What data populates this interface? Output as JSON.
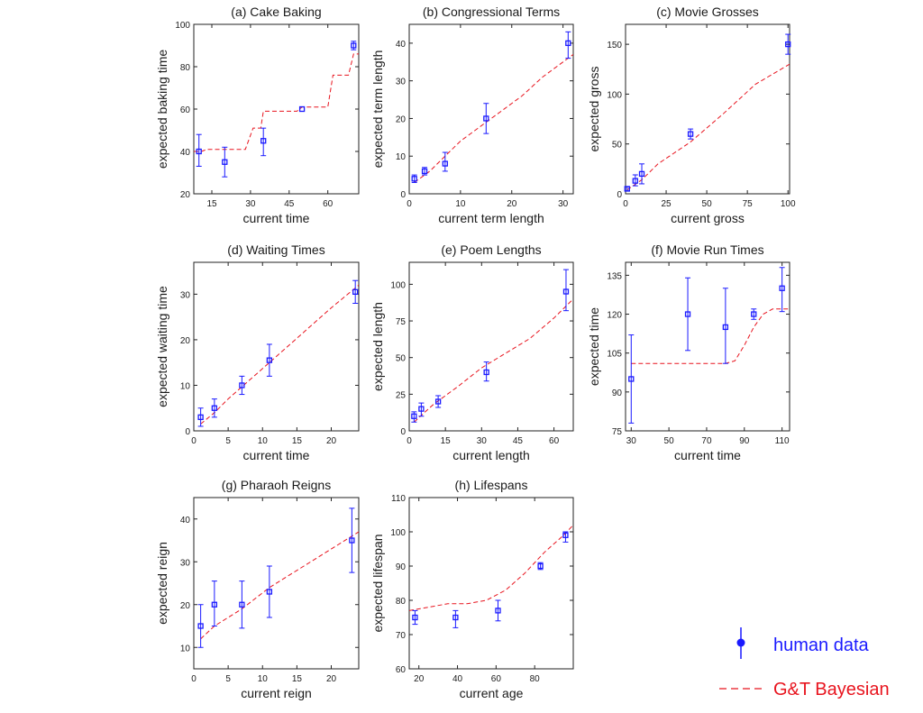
{
  "legend": {
    "human_label": "human data",
    "human_color": "#1a1aff",
    "model_label": "G&T Bayesian",
    "model_color": "#e8141e"
  },
  "chart_data": [
    {
      "type": "line",
      "title": "(a) Cake Baking",
      "xlabel": "current time",
      "ylabel": "expected baking time",
      "xlim": [
        8,
        72
      ],
      "ylim": [
        20,
        100
      ],
      "xticks": [
        15,
        30,
        45,
        60
      ],
      "yticks": [
        20,
        40,
        60,
        80,
        100
      ],
      "human": [
        {
          "x": 10,
          "y": 40,
          "lo": 33,
          "hi": 48
        },
        {
          "x": 20,
          "y": 35,
          "lo": 28,
          "hi": 42
        },
        {
          "x": 35,
          "y": 45,
          "lo": 38,
          "hi": 51
        },
        {
          "x": 50,
          "y": 60,
          "lo": 60,
          "hi": 60
        },
        {
          "x": 70,
          "y": 90,
          "lo": 88,
          "hi": 92
        }
      ],
      "model": [
        [
          8,
          40
        ],
        [
          11,
          40
        ],
        [
          13,
          41
        ],
        [
          28,
          41
        ],
        [
          31,
          51
        ],
        [
          34,
          51
        ],
        [
          35,
          59
        ],
        [
          48,
          59
        ],
        [
          50,
          61
        ],
        [
          60,
          61
        ],
        [
          62,
          76
        ],
        [
          68,
          76
        ],
        [
          70,
          86
        ],
        [
          72,
          86
        ]
      ]
    },
    {
      "type": "line",
      "title": "(b) Congressional Terms",
      "xlabel": "current term length",
      "ylabel": "expected term length",
      "xlim": [
        0,
        32
      ],
      "ylim": [
        0,
        45
      ],
      "xticks": [
        0,
        10,
        20,
        30
      ],
      "yticks": [
        0,
        10,
        20,
        30,
        40
      ],
      "human": [
        {
          "x": 1,
          "y": 4,
          "lo": 3,
          "hi": 5
        },
        {
          "x": 3,
          "y": 6,
          "lo": 5,
          "hi": 7
        },
        {
          "x": 7,
          "y": 8,
          "lo": 6,
          "hi": 11
        },
        {
          "x": 15,
          "y": 20,
          "lo": 16,
          "hi": 24
        },
        {
          "x": 31,
          "y": 40,
          "lo": 36,
          "hi": 43
        }
      ],
      "model": [
        [
          1,
          3
        ],
        [
          4,
          6
        ],
        [
          7,
          10
        ],
        [
          10,
          14
        ],
        [
          14,
          18
        ],
        [
          18,
          22
        ],
        [
          22,
          26
        ],
        [
          26,
          31
        ],
        [
          30,
          35
        ],
        [
          32,
          37
        ]
      ]
    },
    {
      "type": "line",
      "title": "(c) Movie Grosses",
      "xlabel": "current gross",
      "ylabel": "expected gross",
      "xlim": [
        0,
        101
      ],
      "ylim": [
        0,
        170
      ],
      "xticks": [
        0,
        25,
        50,
        75,
        100
      ],
      "yticks": [
        0,
        50,
        100,
        150
      ],
      "human": [
        {
          "x": 1,
          "y": 5,
          "lo": 3,
          "hi": 7
        },
        {
          "x": 6,
          "y": 13,
          "lo": 8,
          "hi": 19
        },
        {
          "x": 10,
          "y": 20,
          "lo": 10,
          "hi": 30
        },
        {
          "x": 40,
          "y": 60,
          "lo": 55,
          "hi": 65
        },
        {
          "x": 100,
          "y": 150,
          "lo": 140,
          "hi": 160
        }
      ],
      "model": [
        [
          1,
          4
        ],
        [
          10,
          14
        ],
        [
          20,
          30
        ],
        [
          40,
          52
        ],
        [
          60,
          80
        ],
        [
          80,
          110
        ],
        [
          101,
          130
        ]
      ]
    },
    {
      "type": "line",
      "title": "(d) Waiting Times",
      "xlabel": "current time",
      "ylabel": "expected waiting time",
      "xlim": [
        0,
        24
      ],
      "ylim": [
        0,
        37
      ],
      "xticks": [
        0,
        5,
        10,
        15,
        20
      ],
      "yticks": [
        0,
        10,
        20,
        30
      ],
      "human": [
        {
          "x": 1,
          "y": 3,
          "lo": 1,
          "hi": 5
        },
        {
          "x": 3,
          "y": 5,
          "lo": 3,
          "hi": 7
        },
        {
          "x": 7,
          "y": 10,
          "lo": 8,
          "hi": 12
        },
        {
          "x": 11,
          "y": 15.5,
          "lo": 12,
          "hi": 19
        },
        {
          "x": 23.5,
          "y": 30.5,
          "lo": 28,
          "hi": 33
        }
      ],
      "model": [
        [
          1,
          1.5
        ],
        [
          3,
          4
        ],
        [
          5,
          7
        ],
        [
          8,
          11
        ],
        [
          11,
          15
        ],
        [
          14,
          19
        ],
        [
          17,
          23
        ],
        [
          20,
          27
        ],
        [
          24,
          32
        ]
      ]
    },
    {
      "type": "line",
      "title": "(e) Poem Lengths",
      "xlabel": "current length",
      "ylabel": "expected length",
      "xlim": [
        0,
        68
      ],
      "ylim": [
        0,
        115
      ],
      "xticks": [
        0,
        15,
        30,
        45,
        60
      ],
      "yticks": [
        0,
        25,
        50,
        75,
        100
      ],
      "human": [
        {
          "x": 2,
          "y": 10,
          "lo": 6,
          "hi": 13
        },
        {
          "x": 5,
          "y": 15,
          "lo": 10,
          "hi": 19
        },
        {
          "x": 12,
          "y": 20,
          "lo": 16,
          "hi": 24
        },
        {
          "x": 32,
          "y": 40,
          "lo": 34,
          "hi": 47
        },
        {
          "x": 65,
          "y": 95,
          "lo": 82,
          "hi": 110
        }
      ],
      "model": [
        [
          2,
          6
        ],
        [
          10,
          18
        ],
        [
          20,
          30
        ],
        [
          30,
          43
        ],
        [
          40,
          53
        ],
        [
          50,
          63
        ],
        [
          60,
          77
        ],
        [
          68,
          90
        ]
      ]
    },
    {
      "type": "line",
      "title": "(f) Movie Run Times",
      "xlabel": "current time",
      "ylabel": "expected time",
      "xlim": [
        27,
        114
      ],
      "ylim": [
        75,
        140
      ],
      "xticks": [
        30,
        50,
        70,
        90,
        110
      ],
      "yticks": [
        75,
        90,
        105,
        120,
        135
      ],
      "human": [
        {
          "x": 30,
          "y": 95,
          "lo": 78,
          "hi": 112
        },
        {
          "x": 60,
          "y": 120,
          "lo": 106,
          "hi": 134
        },
        {
          "x": 80,
          "y": 115,
          "lo": 101,
          "hi": 130
        },
        {
          "x": 95,
          "y": 120,
          "lo": 118,
          "hi": 122
        },
        {
          "x": 110,
          "y": 130,
          "lo": 121,
          "hi": 138
        }
      ],
      "model": [
        [
          30,
          101
        ],
        [
          60,
          101
        ],
        [
          80,
          101
        ],
        [
          85,
          102
        ],
        [
          90,
          108
        ],
        [
          95,
          115
        ],
        [
          100,
          120
        ],
        [
          105,
          122
        ],
        [
          114,
          122
        ]
      ]
    },
    {
      "type": "line",
      "title": "(g) Pharaoh Reigns",
      "xlabel": "current reign",
      "ylabel": "expected reign",
      "xlim": [
        0,
        24
      ],
      "ylim": [
        5,
        45
      ],
      "xticks": [
        0,
        5,
        10,
        15,
        20
      ],
      "yticks": [
        10,
        20,
        30,
        40
      ],
      "human": [
        {
          "x": 1,
          "y": 15,
          "lo": 10,
          "hi": 20
        },
        {
          "x": 3,
          "y": 20,
          "lo": 15,
          "hi": 25.5
        },
        {
          "x": 7,
          "y": 20,
          "lo": 14.5,
          "hi": 25.5
        },
        {
          "x": 11,
          "y": 23,
          "lo": 17,
          "hi": 29
        },
        {
          "x": 23,
          "y": 35,
          "lo": 27.5,
          "hi": 42.5
        }
      ],
      "model": [
        [
          1,
          12
        ],
        [
          3,
          15
        ],
        [
          7,
          19
        ],
        [
          11,
          24
        ],
        [
          15,
          28
        ],
        [
          19,
          32
        ],
        [
          24,
          37
        ]
      ]
    },
    {
      "type": "line",
      "title": "(h) Lifespans",
      "xlabel": "current age",
      "ylabel": "expected lifespan",
      "xlim": [
        15,
        100
      ],
      "ylim": [
        60,
        110
      ],
      "xticks": [
        20,
        40,
        60,
        80
      ],
      "yticks": [
        60,
        70,
        80,
        90,
        100,
        110
      ],
      "human": [
        {
          "x": 18,
          "y": 75,
          "lo": 73,
          "hi": 77
        },
        {
          "x": 39,
          "y": 75,
          "lo": 72,
          "hi": 77
        },
        {
          "x": 61,
          "y": 77,
          "lo": 74,
          "hi": 80
        },
        {
          "x": 83,
          "y": 90,
          "lo": 89,
          "hi": 91
        },
        {
          "x": 96,
          "y": 99,
          "lo": 97,
          "hi": 100
        }
      ],
      "model": [
        [
          15,
          77
        ],
        [
          25,
          78
        ],
        [
          35,
          79
        ],
        [
          45,
          79
        ],
        [
          55,
          80
        ],
        [
          65,
          83
        ],
        [
          75,
          88
        ],
        [
          85,
          94
        ],
        [
          95,
          99
        ],
        [
          100,
          102
        ]
      ]
    }
  ]
}
